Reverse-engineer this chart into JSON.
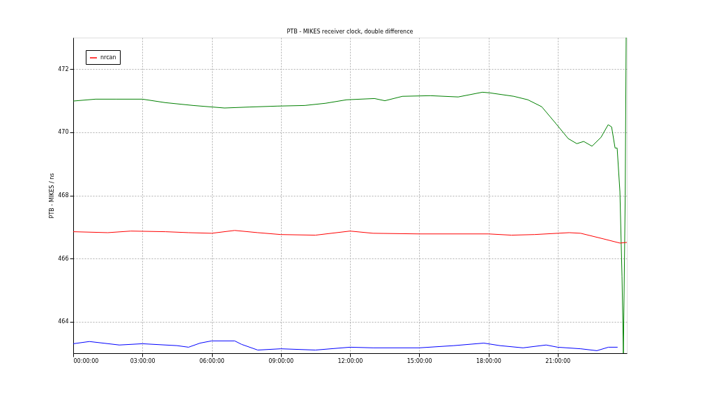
{
  "chart_data": {
    "type": "line",
    "title": "PTB - MIKES receiver clock, double difference",
    "ylabel": "PTB - MIKES / ns",
    "xlim": [
      0,
      24
    ],
    "ylim": [
      463,
      473
    ],
    "xticks": [
      {
        "value": 0,
        "label": "00:00:00"
      },
      {
        "value": 3,
        "label": "03:00:00"
      },
      {
        "value": 6,
        "label": "06:00:00"
      },
      {
        "value": 9,
        "label": "09:00:00"
      },
      {
        "value": 12,
        "label": "12:00:00"
      },
      {
        "value": 15,
        "label": "15:00:00"
      },
      {
        "value": 18,
        "label": "18:00:00"
      },
      {
        "value": 21,
        "label": "21:00:00"
      }
    ],
    "yticks": [
      464,
      466,
      468,
      470,
      472
    ],
    "grid": true,
    "legend": "top left",
    "line_style": "solid",
    "marker": "none",
    "series": [
      {
        "color": "#0000ff",
        "x": [
          0,
          0.7,
          2,
          3,
          4.5,
          5,
          5.5,
          6,
          7,
          7.3,
          8,
          9,
          10.5,
          12,
          13,
          15,
          16.5,
          17.8,
          18.5,
          19.5,
          20.5,
          21,
          22,
          22.7,
          23.2,
          23.6
        ],
        "values": [
          463.3,
          463.37,
          463.26,
          463.3,
          463.24,
          463.19,
          463.32,
          463.39,
          463.39,
          463.28,
          463.1,
          463.14,
          463.1,
          463.19,
          463.17,
          463.17,
          463.24,
          463.32,
          463.24,
          463.17,
          463.26,
          463.19,
          463.14,
          463.08,
          463.19,
          463.19
        ]
      },
      {
        "color": "#008000",
        "x": [
          0,
          0.97,
          1.87,
          3,
          3.99,
          5.2,
          6.56,
          7.62,
          8.83,
          10.04,
          10.94,
          11.85,
          13.06,
          13.51,
          14.27,
          15.48,
          16.69,
          17.74,
          18.05,
          19.1,
          19.71,
          20.31,
          20.92,
          21.46,
          21.83,
          22.13,
          22.49,
          22.88,
          23.19,
          23.34,
          23.49,
          23.58,
          23.7,
          23.79,
          23.85,
          23.93,
          23.97
        ],
        "values": [
          470.99,
          471.05,
          471.05,
          471.05,
          470.94,
          470.85,
          470.77,
          470.8,
          470.83,
          470.85,
          470.92,
          471.03,
          471.07,
          471.0,
          471.14,
          471.16,
          471.12,
          471.27,
          471.25,
          471.14,
          471.03,
          470.81,
          470.28,
          469.8,
          469.64,
          469.71,
          469.56,
          469.84,
          470.24,
          470.17,
          469.5,
          469.5,
          468.12,
          465.44,
          463,
          468,
          473
        ]
      },
      {
        "name": "nrcan",
        "color": "#ff0000",
        "x": [
          0,
          1.5,
          2.5,
          4,
          5,
          6,
          7,
          8,
          9,
          10.5,
          12,
          13,
          15,
          18,
          19,
          20,
          21.5,
          22,
          23,
          23.7,
          24
        ],
        "values": [
          466.85,
          466.82,
          466.87,
          466.85,
          466.82,
          466.8,
          466.89,
          466.82,
          466.76,
          466.74,
          466.87,
          466.8,
          466.78,
          466.78,
          466.74,
          466.76,
          466.82,
          466.8,
          466.62,
          466.49,
          466.51
        ]
      }
    ]
  }
}
